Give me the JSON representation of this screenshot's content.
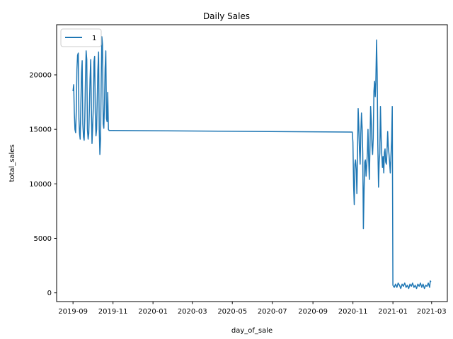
{
  "chart_data": {
    "type": "line",
    "title": "Daily Sales",
    "xlabel": "day_of_sale",
    "ylabel": "total_sales",
    "x_type": "date",
    "xlim": [
      "2019-08-07",
      "2021-03-25"
    ],
    "ylim": [
      -800,
      24600
    ],
    "x_ticks": [
      "2019-09",
      "2019-11",
      "2020-01",
      "2020-03",
      "2020-05",
      "2020-07",
      "2020-09",
      "2020-11",
      "2021-01",
      "2021-03"
    ],
    "y_ticks": [
      0,
      5000,
      10000,
      15000,
      20000
    ],
    "grid": false,
    "legend": {
      "position": "top-left",
      "entries": [
        "1"
      ]
    },
    "series": [
      {
        "name": "1",
        "color": "#1f77b4",
        "x": [
          "2019-09-01",
          "2019-09-02",
          "2019-09-03",
          "2019-09-04",
          "2019-09-05",
          "2019-09-06",
          "2019-09-07",
          "2019-09-08",
          "2019-09-09",
          "2019-09-10",
          "2019-09-11",
          "2019-09-12",
          "2019-09-13",
          "2019-09-14",
          "2019-09-15",
          "2019-09-16",
          "2019-09-17",
          "2019-09-18",
          "2019-09-19",
          "2019-09-20",
          "2019-09-21",
          "2019-09-22",
          "2019-09-23",
          "2019-09-24",
          "2019-09-25",
          "2019-09-26",
          "2019-09-27",
          "2019-09-28",
          "2019-09-29",
          "2019-09-30",
          "2019-10-01",
          "2019-10-02",
          "2019-10-03",
          "2019-10-04",
          "2019-10-05",
          "2019-10-06",
          "2019-10-07",
          "2019-10-08",
          "2019-10-09",
          "2019-10-10",
          "2019-10-11",
          "2019-10-12",
          "2019-10-13",
          "2019-10-14",
          "2019-10-15",
          "2019-10-16",
          "2019-10-17",
          "2019-10-18",
          "2019-10-19",
          "2019-10-20",
          "2019-10-21",
          "2019-10-22",
          "2019-10-23",
          "2019-10-24",
          "2019-10-25",
          "2019-10-26",
          "2019-10-27",
          "2019-10-28",
          "2019-10-29",
          "2019-10-30",
          "2019-10-31",
          "2020-10-31",
          "2020-11-01",
          "2020-11-02",
          "2020-11-03",
          "2020-11-04",
          "2020-11-05",
          "2020-11-06",
          "2020-11-07",
          "2020-11-08",
          "2020-11-09",
          "2020-11-10",
          "2020-11-11",
          "2020-11-12",
          "2020-11-13",
          "2020-11-14",
          "2020-11-15",
          "2020-11-16",
          "2020-11-17",
          "2020-11-18",
          "2020-11-19",
          "2020-11-20",
          "2020-11-21",
          "2020-11-22",
          "2020-11-23",
          "2020-11-24",
          "2020-11-25",
          "2020-11-26",
          "2020-11-27",
          "2020-11-28",
          "2020-11-29",
          "2020-11-30",
          "2020-12-01",
          "2020-12-02",
          "2020-12-03",
          "2020-12-04",
          "2020-12-05",
          "2020-12-06",
          "2020-12-07",
          "2020-12-08",
          "2020-12-09",
          "2020-12-10",
          "2020-12-11",
          "2020-12-12",
          "2020-12-13",
          "2020-12-14",
          "2020-12-15",
          "2020-12-16",
          "2020-12-17",
          "2020-12-18",
          "2020-12-19",
          "2020-12-20",
          "2020-12-21",
          "2020-12-22",
          "2020-12-23",
          "2020-12-24",
          "2020-12-25",
          "2020-12-26",
          "2020-12-27",
          "2020-12-28",
          "2020-12-29",
          "2020-12-30",
          "2020-12-31",
          "2021-01-01",
          "2021-01-03",
          "2021-01-05",
          "2021-01-07",
          "2021-01-09",
          "2021-01-11",
          "2021-01-13",
          "2021-01-15",
          "2021-01-17",
          "2021-01-19",
          "2021-01-21",
          "2021-01-23",
          "2021-01-25",
          "2021-01-27",
          "2021-01-29",
          "2021-01-31",
          "2021-02-02",
          "2021-02-04",
          "2021-02-06",
          "2021-02-08",
          "2021-02-10",
          "2021-02-12",
          "2021-02-14",
          "2021-02-16",
          "2021-02-18",
          "2021-02-20",
          "2021-02-22",
          "2021-02-24",
          "2021-02-26",
          "2021-02-27",
          "2021-02-28"
        ],
        "y": [
          18500,
          19100,
          16500,
          15000,
          14700,
          16800,
          20500,
          21800,
          22000,
          16000,
          14600,
          14100,
          17500,
          20200,
          21300,
          15500,
          14300,
          14000,
          16000,
          19800,
          22200,
          21400,
          15000,
          14100,
          14600,
          16900,
          19600,
          21400,
          16800,
          13700,
          15200,
          17200,
          21200,
          21700,
          16500,
          14400,
          15000,
          17800,
          20500,
          22100,
          15000,
          12700,
          14200,
          19500,
          23500,
          22800,
          15500,
          15100,
          17300,
          20600,
          22200,
          16000,
          15700,
          18400,
          15000,
          14900,
          14900,
          14900,
          14900,
          14900,
          14900,
          14750,
          13800,
          9800,
          8100,
          11800,
          12200,
          11300,
          9100,
          12500,
          16900,
          15200,
          13000,
          11800,
          14500,
          16500,
          15200,
          12800,
          5900,
          9500,
          12000,
          12200,
          10700,
          11700,
          12800,
          15000,
          12200,
          10400,
          13300,
          17100,
          15800,
          13500,
          12700,
          14200,
          18500,
          19400,
          18000,
          19400,
          23200,
          20000,
          13600,
          9700,
          12000,
          12800,
          17100,
          14200,
          12600,
          11500,
          12500,
          11000,
          12900,
          13200,
          12000,
          11800,
          13000,
          14800,
          13400,
          12700,
          11900,
          11000,
          12500,
          14000,
          17100,
          700,
          500,
          800,
          500,
          900,
          700,
          400,
          800,
          600,
          900,
          500,
          700,
          400,
          800,
          600,
          900,
          500,
          700,
          400,
          800,
          600,
          900,
          500,
          800,
          400,
          700,
          600,
          900,
          500,
          1100,
          1000
        ]
      }
    ]
  }
}
